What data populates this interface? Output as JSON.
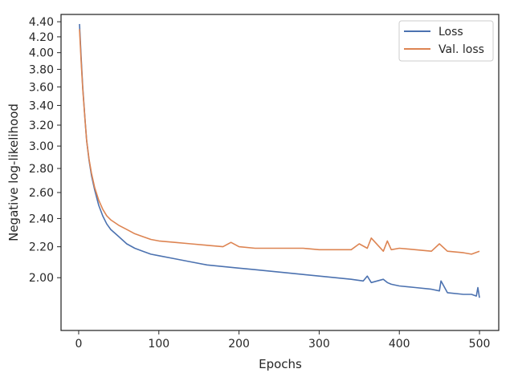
{
  "chart_data": {
    "type": "line",
    "xlabel": "Epochs",
    "ylabel": "Negative log-likelihood",
    "xlim": [
      -22,
      524
    ],
    "ylim": [
      1.7,
      4.5
    ],
    "yscale": "log",
    "xticks": [
      0,
      100,
      200,
      300,
      400,
      500
    ],
    "xtick_labels": [
      "0",
      "100",
      "200",
      "300",
      "400",
      "500"
    ],
    "yticks": [
      2.0,
      2.2,
      2.4,
      2.6,
      2.8,
      3.0,
      3.2,
      3.4,
      3.6,
      3.8,
      4.0,
      4.2,
      4.4
    ],
    "ytick_labels": [
      "2.00",
      "2.20",
      "2.40",
      "2.60",
      "2.80",
      "3.00",
      "3.20",
      "3.40",
      "3.60",
      "3.80",
      "4.00",
      "4.20",
      "4.40"
    ],
    "grid": false,
    "legend_position": "top-right",
    "series": [
      {
        "name": "Loss",
        "color": "#4c72b0",
        "x": [
          1,
          3,
          5,
          8,
          10,
          13,
          16,
          20,
          25,
          30,
          35,
          40,
          50,
          60,
          70,
          80,
          90,
          100,
          120,
          140,
          160,
          180,
          200,
          220,
          240,
          260,
          280,
          300,
          320,
          340,
          355,
          360,
          365,
          380,
          385,
          390,
          400,
          420,
          440,
          450,
          452,
          460,
          480,
          490,
          496,
          498,
          500
        ],
        "y": [
          4.37,
          3.95,
          3.6,
          3.25,
          3.05,
          2.87,
          2.74,
          2.62,
          2.5,
          2.42,
          2.36,
          2.32,
          2.27,
          2.22,
          2.19,
          2.17,
          2.15,
          2.14,
          2.12,
          2.1,
          2.08,
          2.07,
          2.06,
          2.05,
          2.04,
          2.03,
          2.02,
          2.01,
          2.0,
          1.99,
          1.98,
          2.01,
          1.97,
          1.99,
          1.97,
          1.96,
          1.95,
          1.94,
          1.93,
          1.92,
          1.98,
          1.91,
          1.9,
          1.9,
          1.89,
          1.94,
          1.88
        ]
      },
      {
        "name": "Val. loss",
        "color": "#dd8452",
        "x": [
          1,
          3,
          5,
          8,
          10,
          13,
          16,
          20,
          25,
          30,
          35,
          40,
          50,
          60,
          70,
          80,
          90,
          100,
          120,
          140,
          160,
          180,
          190,
          200,
          220,
          240,
          260,
          280,
          300,
          320,
          340,
          350,
          360,
          365,
          380,
          385,
          390,
          400,
          420,
          440,
          450,
          460,
          480,
          490,
          500
        ],
        "y": [
          4.3,
          3.9,
          3.58,
          3.25,
          3.05,
          2.88,
          2.76,
          2.64,
          2.54,
          2.47,
          2.42,
          2.39,
          2.35,
          2.32,
          2.29,
          2.27,
          2.25,
          2.24,
          2.23,
          2.22,
          2.21,
          2.2,
          2.23,
          2.2,
          2.19,
          2.19,
          2.19,
          2.19,
          2.18,
          2.18,
          2.18,
          2.22,
          2.19,
          2.26,
          2.17,
          2.24,
          2.18,
          2.19,
          2.18,
          2.17,
          2.22,
          2.17,
          2.16,
          2.15,
          2.17
        ]
      }
    ]
  }
}
